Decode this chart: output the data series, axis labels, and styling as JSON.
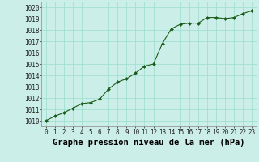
{
  "x": [
    0,
    1,
    2,
    3,
    4,
    5,
    6,
    7,
    8,
    9,
    10,
    11,
    12,
    13,
    14,
    15,
    16,
    17,
    18,
    19,
    20,
    21,
    22,
    23
  ],
  "y": [
    1010.0,
    1010.4,
    1010.7,
    1011.1,
    1011.5,
    1011.6,
    1011.9,
    1012.8,
    1013.4,
    1013.7,
    1014.2,
    1014.8,
    1015.0,
    1016.8,
    1018.1,
    1018.5,
    1018.6,
    1018.6,
    1019.1,
    1019.1,
    1019.0,
    1019.1,
    1019.45,
    1019.7
  ],
  "line_color": "#1a5c1a",
  "marker_color": "#1a5c1a",
  "bg_color": "#cceee8",
  "grid_color": "#99ddcc",
  "xlabel": "Graphe pression niveau de la mer (hPa)",
  "ylim": [
    1009.5,
    1020.5
  ],
  "xlim": [
    -0.5,
    23.5
  ],
  "yticks": [
    1010,
    1011,
    1012,
    1013,
    1014,
    1015,
    1016,
    1017,
    1018,
    1019,
    1020
  ],
  "xticks": [
    0,
    1,
    2,
    3,
    4,
    5,
    6,
    7,
    8,
    9,
    10,
    11,
    12,
    13,
    14,
    15,
    16,
    17,
    18,
    19,
    20,
    21,
    22,
    23
  ],
  "tick_fontsize": 5.5,
  "xlabel_fontsize": 7.5
}
